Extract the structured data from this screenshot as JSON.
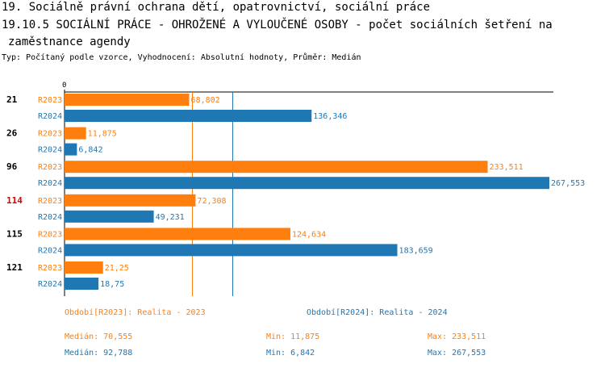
{
  "title_line1": "19. Sociálně právní ochrana dětí, opatrovnictví, sociální práce",
  "title_line2": "19.10.5 SOCIÁLNÍ PRÁCE - OHROŽENÉ A VYLOUČENÉ OSOBY - počet sociálních šetření na",
  "title_line3": "zaměstnance agendy",
  "subtitle": "Typ: Počítaný podle vzorce, Vyhodnocení: Absolutní hodnoty, Průměr: Medián",
  "chart_data": {
    "type": "bar",
    "orientation": "horizontal",
    "axis_zero_label": "0",
    "xlim": [
      0,
      267.553
    ],
    "categories": [
      "21",
      "26",
      "96",
      "114",
      "115",
      "121"
    ],
    "highlighted_category": "114",
    "highlight_color": "#e00000",
    "series": [
      {
        "name": "R2023",
        "color": "#ff7f0e",
        "values": [
          68.802,
          11.875,
          233.511,
          72.308,
          124.634,
          21.25
        ],
        "labels": [
          "68,802",
          "11,875",
          "233,511",
          "72,308",
          "124,634",
          "21,25"
        ]
      },
      {
        "name": "R2024",
        "color": "#1f77b4",
        "values": [
          136.346,
          6.842,
          267.553,
          49.231,
          183.659,
          18.75
        ],
        "labels": [
          "136,346",
          "6,842",
          "267,553",
          "49,231",
          "183,659",
          "18,75"
        ]
      }
    ],
    "median_lines": [
      {
        "series": "R2023",
        "value": 70.555
      },
      {
        "series": "R2024",
        "value": 92.788
      }
    ]
  },
  "legend": {
    "r2023_period": "Období[R2023]: Realita - 2023",
    "r2024_period": "Období[R2024]: Realita - 2024",
    "r2023_median": "Medián: 70,555",
    "r2023_min": "Min: 11,875",
    "r2023_max": "Max: 233,511",
    "r2024_median": "Medián: 92,788",
    "r2024_min": "Min: 6,842",
    "r2024_max": "Max: 267,553"
  }
}
